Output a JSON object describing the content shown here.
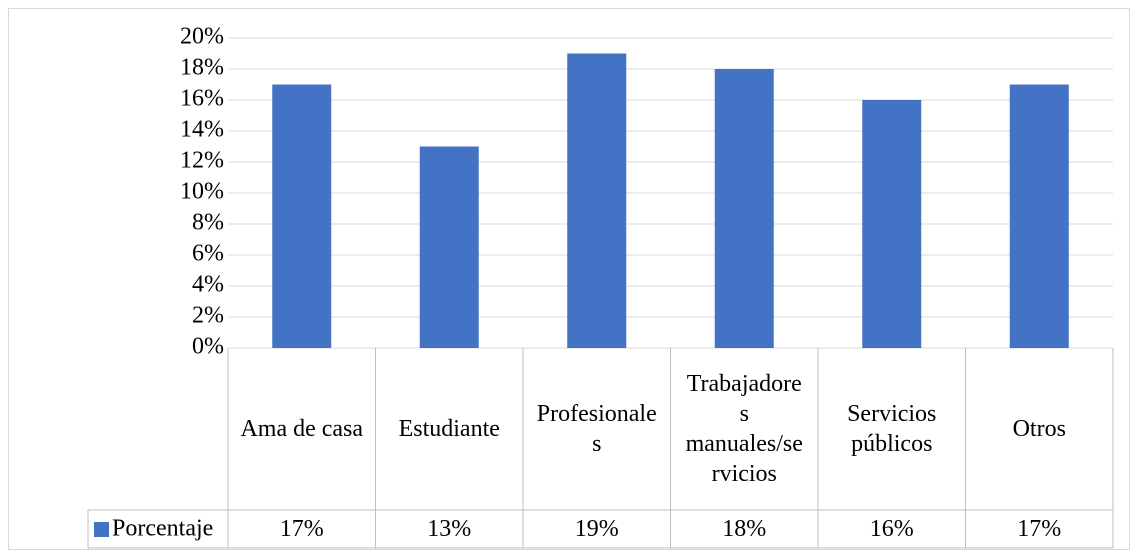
{
  "chart_data": {
    "type": "bar",
    "categories": [
      "Ama de casa",
      "Estudiante",
      "Profesionales",
      "Trabajadores manuales/servicios",
      "Servicios públicos",
      "Otros"
    ],
    "series": [
      {
        "name": "Porcentaje",
        "color": "#4472c4",
        "values": [
          17,
          13,
          19,
          18,
          16,
          17
        ],
        "value_labels": [
          "17%",
          "13%",
          "19%",
          "18%",
          "16%",
          "17%"
        ]
      }
    ],
    "ylim": [
      0,
      20
    ],
    "yticks": [
      {
        "value": 0,
        "label": "0%"
      },
      {
        "value": 2,
        "label": "2%"
      },
      {
        "value": 4,
        "label": "4%"
      },
      {
        "value": 6,
        "label": "6%"
      },
      {
        "value": 8,
        "label": "8%"
      },
      {
        "value": 10,
        "label": "10%"
      },
      {
        "value": 12,
        "label": "12%"
      },
      {
        "value": 14,
        "label": "14%"
      },
      {
        "value": 16,
        "label": "16%"
      },
      {
        "value": 18,
        "label": "18%"
      },
      {
        "value": 20,
        "label": "20%"
      }
    ],
    "grid": true
  }
}
